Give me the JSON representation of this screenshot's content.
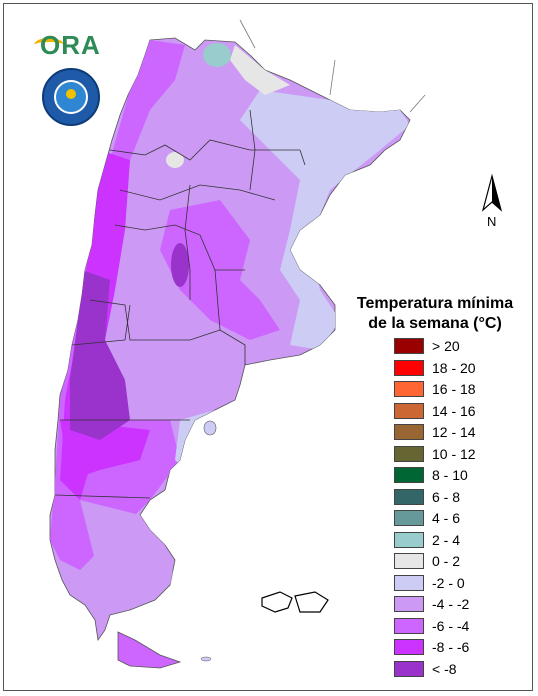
{
  "logos": {
    "ora_text": "ORA",
    "seal_icon": "smn-seal-icon"
  },
  "north_arrow": {
    "label": "N"
  },
  "legend": {
    "title_line1": "Temperatura mínima",
    "title_line2": "de la semana (°C)",
    "items": [
      {
        "label": "> 20",
        "color": "#990000"
      },
      {
        "label": "18 - 20",
        "color": "#ff0000"
      },
      {
        "label": "16 - 18",
        "color": "#ff6633"
      },
      {
        "label": "14 - 16",
        "color": "#cc6633"
      },
      {
        "label": "12 - 14",
        "color": "#996633"
      },
      {
        "label": "10 - 12",
        "color": "#666633"
      },
      {
        "label": "8 - 10",
        "color": "#006633"
      },
      {
        "label": "6 - 8",
        "color": "#336666"
      },
      {
        "label": "4 - 6",
        "color": "#669999"
      },
      {
        "label": "2 - 4",
        "color": "#99cccc"
      },
      {
        "label": "0 - 2",
        "color": "#e6e6e6"
      },
      {
        "label": "-2 - 0",
        "color": "#ccccf5"
      },
      {
        "label": "-4 - -2",
        "color": "#cc99f5"
      },
      {
        "label": "-6 - -4",
        "color": "#cc66ff"
      },
      {
        "label": "-8 - -6",
        "color": "#cc33ff"
      },
      {
        "label": "< -8",
        "color": "#9933cc"
      }
    ]
  }
}
